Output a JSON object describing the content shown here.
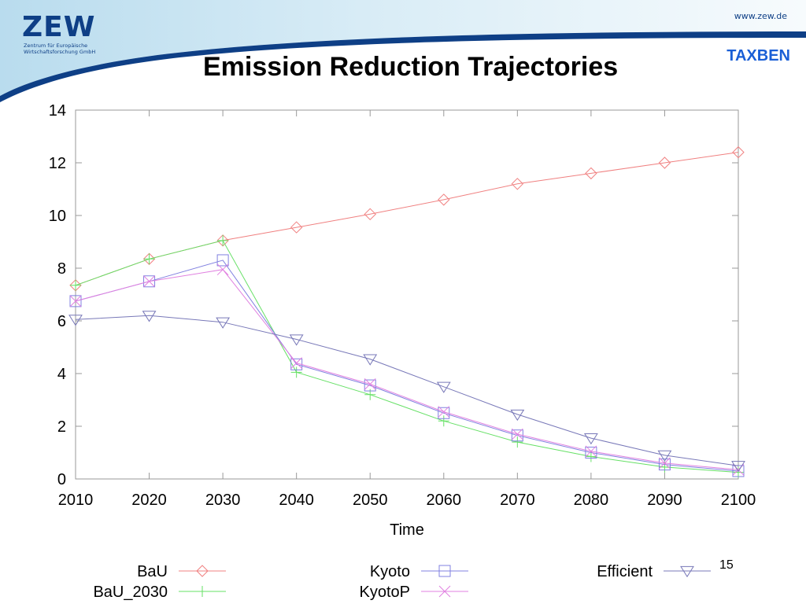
{
  "header": {
    "logo_text": "ZEW",
    "logo_subtitle_line1": "Zentrum für Europäische",
    "logo_subtitle_line2": "Wirtschaftsforschung GmbH",
    "url": "www.zew.de",
    "brand": "TAXBEN",
    "title": "Emission Reduction Trajectories"
  },
  "page_number": "15",
  "colors": {
    "banner_light": "#cfe6f2",
    "banner_dark": "#0e3f86",
    "brand": "#1a5fd6"
  },
  "chart_data": {
    "type": "line",
    "title": "",
    "xlabel": "Time",
    "ylabel": "",
    "x": [
      2010,
      2020,
      2030,
      2040,
      2050,
      2060,
      2070,
      2080,
      2090,
      2100
    ],
    "xlim": [
      2010,
      2100
    ],
    "ylim": [
      0,
      14
    ],
    "xticks": [
      "2010",
      "2020",
      "2030",
      "2040",
      "2050",
      "2060",
      "2070",
      "2080",
      "2090",
      "2100"
    ],
    "yticks": [
      "0",
      "2",
      "4",
      "6",
      "8",
      "10",
      "12",
      "14"
    ],
    "grid": false,
    "legend_position": "bottom",
    "series": [
      {
        "name": "BaU",
        "color": "#f08080",
        "marker": "diamond",
        "values": [
          7.35,
          8.35,
          9.05,
          9.55,
          10.05,
          10.6,
          11.2,
          11.6,
          12.0,
          12.4
        ]
      },
      {
        "name": "BaU_2030",
        "color": "#66e066",
        "marker": "plus",
        "values": [
          7.35,
          8.35,
          9.05,
          4.05,
          3.2,
          2.2,
          1.4,
          0.85,
          0.45,
          0.25
        ]
      },
      {
        "name": "Kyoto",
        "color": "#8080e0",
        "marker": "square",
        "values": [
          6.75,
          7.5,
          8.3,
          4.35,
          3.55,
          2.5,
          1.65,
          1.0,
          0.55,
          0.3
        ]
      },
      {
        "name": "KyotoP",
        "color": "#e080e0",
        "marker": "cross",
        "values": [
          6.75,
          7.5,
          7.95,
          4.4,
          3.6,
          2.55,
          1.7,
          1.05,
          0.6,
          0.35
        ]
      },
      {
        "name": "Efficient",
        "color": "#7878b8",
        "marker": "triangle-down",
        "values": [
          6.05,
          6.2,
          5.95,
          5.3,
          4.55,
          3.5,
          2.45,
          1.55,
          0.9,
          0.5
        ]
      }
    ]
  }
}
